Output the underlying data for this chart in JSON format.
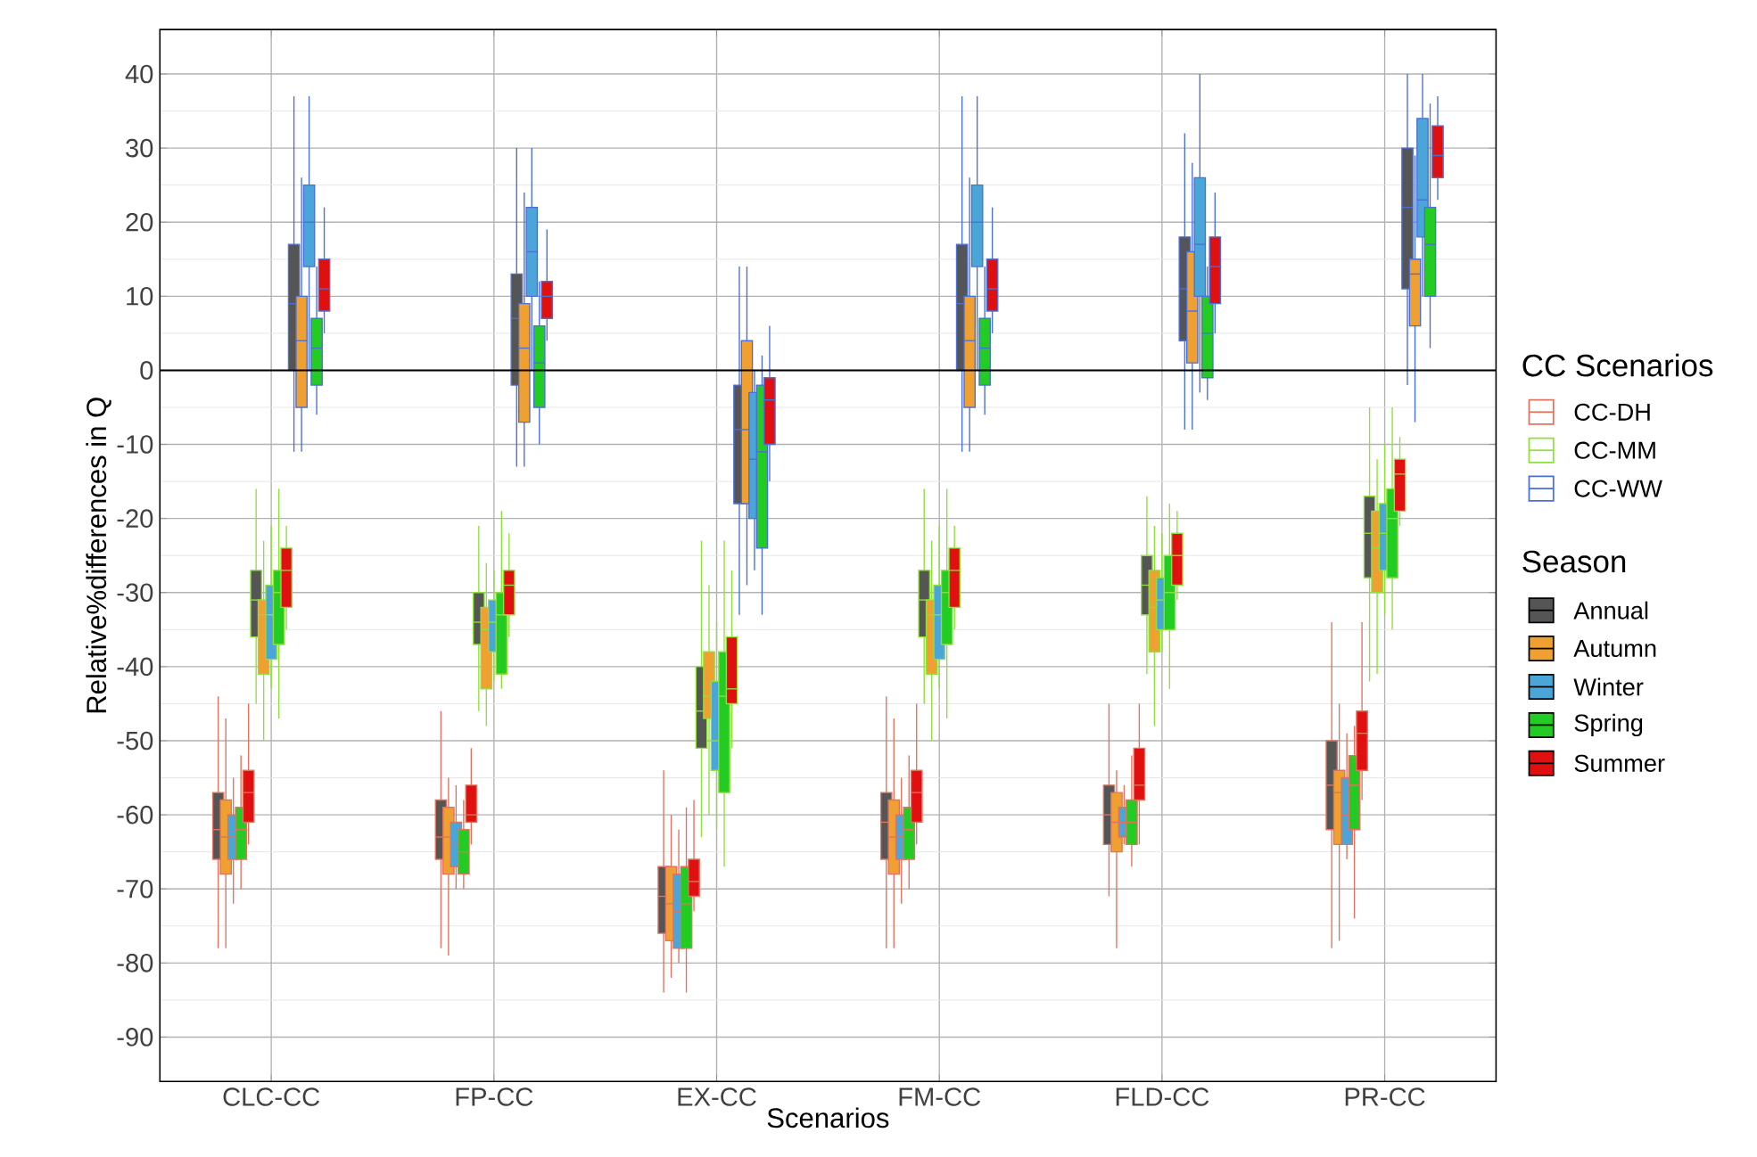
{
  "chart_data": {
    "type": "box",
    "xlabel": "Scenarios",
    "ylabel": "Relative%differences in Q",
    "categories": [
      "CLC-CC",
      "FP-CC",
      "EX-CC",
      "FM-CC",
      "FLD-CC",
      "PR-CC"
    ],
    "ylim": [
      -96,
      46
    ],
    "yticks": [
      -90,
      -80,
      -70,
      -60,
      -50,
      -40,
      -30,
      -20,
      -10,
      0,
      10,
      20,
      30,
      40
    ],
    "grid": true,
    "legend_title": "CC Scenarios",
    "annotations": [
      "CC-DH",
      "CC-MM",
      "CC-WW",
      "Season",
      "Annual",
      "Autumn",
      "Winter",
      "Spring",
      "Summer"
    ],
    "ref_lines": [
      {
        "axis": "y",
        "value": 0,
        "color": "#000000"
      }
    ],
    "series": [
      {
        "color": "#e0735e",
        "colors": [
          "#555555",
          "#555555",
          "#555555",
          "#555555",
          "#555555",
          "#555555"
        ],
        "boxes": [
          {
            "low": -78,
            "q1": -66,
            "median": -62,
            "q3": -57,
            "high": -44
          },
          {
            "low": -78,
            "q1": -66,
            "median": -63,
            "q3": -58,
            "high": -46
          },
          {
            "low": -84,
            "q1": -76,
            "median": -71,
            "q3": -67,
            "high": -54
          },
          {
            "low": -78,
            "q1": -66,
            "median": -61,
            "q3": -57,
            "high": -44
          },
          {
            "low": -71,
            "q1": -64,
            "median": -60,
            "q3": -56,
            "high": -45
          },
          {
            "low": -78,
            "q1": -62,
            "median": -56,
            "q3": -50,
            "high": -34
          }
        ]
      },
      {
        "color": "#e0735e",
        "colors": [
          "#f0a030",
          "#f0a030",
          "#f0a030",
          "#f0a030",
          "#f0a030",
          "#f0a030"
        ],
        "boxes": [
          {
            "low": -78,
            "q1": -68,
            "median": -63,
            "q3": -58,
            "high": -47
          },
          {
            "low": -79,
            "q1": -68,
            "median": -63,
            "q3": -59,
            "high": -55
          },
          {
            "low": -82,
            "q1": -77,
            "median": -72,
            "q3": -67,
            "high": -60
          },
          {
            "low": -78,
            "q1": -68,
            "median": -63,
            "q3": -58,
            "high": -47
          },
          {
            "low": -78,
            "q1": -65,
            "median": -61,
            "q3": -57,
            "high": -54
          },
          {
            "low": -77,
            "q1": -64,
            "median": -57,
            "q3": -54,
            "high": -45
          }
        ]
      },
      {
        "color": "#e0735e",
        "colors": [
          "#4aa6d9",
          "#4aa6d9",
          "#4aa6d9",
          "#4aa6d9",
          "#4aa6d9",
          "#4aa6d9"
        ],
        "boxes": [
          {
            "low": -72,
            "q1": -66,
            "median": -63,
            "q3": -60,
            "high": -55
          },
          {
            "low": -70,
            "q1": -67,
            "median": -64,
            "q3": -61,
            "high": -56
          },
          {
            "low": -80,
            "q1": -78,
            "median": -73,
            "q3": -68,
            "high": -62
          },
          {
            "low": -72,
            "q1": -66,
            "median": -63,
            "q3": -60,
            "high": -55
          },
          {
            "low": -64,
            "q1": -63,
            "median": -61,
            "q3": -59,
            "high": -56
          },
          {
            "low": -66,
            "q1": -64,
            "median": -60,
            "q3": -55,
            "high": -49
          }
        ]
      },
      {
        "color": "#e0735e",
        "colors": [
          "#22cc22",
          "#22cc22",
          "#22cc22",
          "#22cc22",
          "#22cc22",
          "#22cc22"
        ],
        "boxes": [
          {
            "low": -70,
            "q1": -66,
            "median": -62,
            "q3": -59,
            "high": -52
          },
          {
            "low": -70,
            "q1": -68,
            "median": -65,
            "q3": -62,
            "high": -58
          },
          {
            "low": -84,
            "q1": -78,
            "median": -72,
            "q3": -67,
            "high": -59
          },
          {
            "low": -70,
            "q1": -66,
            "median": -62,
            "q3": -59,
            "high": -52
          },
          {
            "low": -67,
            "q1": -64,
            "median": -61,
            "q3": -58,
            "high": -52
          },
          {
            "low": -74,
            "q1": -62,
            "median": -56,
            "q3": -52,
            "high": -48
          }
        ]
      },
      {
        "color": "#e0735e",
        "colors": [
          "#e01010",
          "#e01010",
          "#e01010",
          "#e01010",
          "#e01010",
          "#e01010"
        ],
        "boxes": [
          {
            "low": -64,
            "q1": -61,
            "median": -57,
            "q3": -54,
            "high": -45
          },
          {
            "low": -64,
            "q1": -61,
            "median": -60,
            "q3": -56,
            "high": -51
          },
          {
            "low": -73,
            "q1": -71,
            "median": -69,
            "q3": -66,
            "high": -58
          },
          {
            "low": -64,
            "q1": -61,
            "median": -57,
            "q3": -54,
            "high": -45
          },
          {
            "low": -64,
            "q1": -58,
            "median": -56,
            "q3": -51,
            "high": -45
          },
          {
            "low": -58,
            "q1": -54,
            "median": -49,
            "q3": -46,
            "high": -34
          }
        ]
      },
      {
        "color": "#8fe03a",
        "colors": [
          "#555555",
          "#555555",
          "#555555",
          "#555555",
          "#555555",
          "#555555"
        ],
        "boxes": [
          {
            "low": -45,
            "q1": -36,
            "median": -31,
            "q3": -27,
            "high": -16
          },
          {
            "low": -46,
            "q1": -37,
            "median": -34,
            "q3": -30,
            "high": -21
          },
          {
            "low": -63,
            "q1": -51,
            "median": -46,
            "q3": -40,
            "high": -23
          },
          {
            "low": -45,
            "q1": -36,
            "median": -31,
            "q3": -27,
            "high": -16
          },
          {
            "low": -41,
            "q1": -33,
            "median": -29,
            "q3": -25,
            "high": -17
          },
          {
            "low": -42,
            "q1": -28,
            "median": -22,
            "q3": -17,
            "high": -5
          }
        ]
      },
      {
        "color": "#8fe03a",
        "colors": [
          "#f0a030",
          "#f0a030",
          "#f0a030",
          "#f0a030",
          "#f0a030",
          "#f0a030"
        ],
        "boxes": [
          {
            "low": -50,
            "q1": -41,
            "median": -33,
            "q3": -31,
            "high": -23
          },
          {
            "low": -48,
            "q1": -43,
            "median": -35,
            "q3": -32,
            "high": -26
          },
          {
            "low": -60,
            "q1": -47,
            "median": -44,
            "q3": -38,
            "high": -29
          },
          {
            "low": -50,
            "q1": -41,
            "median": -33,
            "q3": -31,
            "high": -23
          },
          {
            "low": -48,
            "q1": -38,
            "median": -32,
            "q3": -27,
            "high": -21
          },
          {
            "low": -41,
            "q1": -30,
            "median": -24,
            "q3": -19,
            "high": -12
          }
        ]
      },
      {
        "color": "#8fe03a",
        "colors": [
          "#4aa6d9",
          "#4aa6d9",
          "#4aa6d9",
          "#4aa6d9",
          "#4aa6d9",
          "#4aa6d9"
        ],
        "boxes": [
          {
            "low": -43,
            "q1": -39,
            "median": -33,
            "q3": -29,
            "high": -21
          },
          {
            "low": -42,
            "q1": -38,
            "median": -34,
            "q3": -31,
            "high": -27
          },
          {
            "low": -62,
            "q1": -54,
            "median": -50,
            "q3": -42,
            "high": -34
          },
          {
            "low": -43,
            "q1": -39,
            "median": -33,
            "q3": -29,
            "high": -21
          },
          {
            "low": -38,
            "q1": -35,
            "median": -31,
            "q3": -28,
            "high": -22
          },
          {
            "low": -33,
            "q1": -27,
            "median": -22,
            "q3": -18,
            "high": -10
          }
        ]
      },
      {
        "color": "#8fe03a",
        "colors": [
          "#22cc22",
          "#22cc22",
          "#22cc22",
          "#22cc22",
          "#22cc22",
          "#22cc22"
        ],
        "boxes": [
          {
            "low": -47,
            "q1": -37,
            "median": -30,
            "q3": -27,
            "high": -16
          },
          {
            "low": -43,
            "q1": -41,
            "median": -33,
            "q3": -30,
            "high": -19
          },
          {
            "low": -67,
            "q1": -57,
            "median": -44,
            "q3": -38,
            "high": -23
          },
          {
            "low": -47,
            "q1": -37,
            "median": -30,
            "q3": -27,
            "high": -16
          },
          {
            "low": -43,
            "q1": -35,
            "median": -30,
            "q3": -25,
            "high": -18
          },
          {
            "low": -35,
            "q1": -28,
            "median": -20,
            "q3": -16,
            "high": -5
          }
        ]
      },
      {
        "color": "#8fe03a",
        "colors": [
          "#e01010",
          "#e01010",
          "#e01010",
          "#e01010",
          "#e01010",
          "#e01010"
        ],
        "boxes": [
          {
            "low": -35,
            "q1": -32,
            "median": -27,
            "q3": -24,
            "high": -21
          },
          {
            "low": -36,
            "q1": -33,
            "median": -29,
            "q3": -27,
            "high": -22
          },
          {
            "low": -51,
            "q1": -45,
            "median": -43,
            "q3": -36,
            "high": -27
          },
          {
            "low": -35,
            "q1": -32,
            "median": -27,
            "q3": -24,
            "high": -21
          },
          {
            "low": -31,
            "q1": -29,
            "median": -25,
            "q3": -22,
            "high": -19
          },
          {
            "low": -21,
            "q1": -19,
            "median": -14,
            "q3": -12,
            "high": -9
          }
        ]
      },
      {
        "color": "#4a6fd6",
        "colors": [
          "#555555",
          "#555555",
          "#555555",
          "#555555",
          "#555555",
          "#555555"
        ],
        "boxes": [
          {
            "low": -11,
            "q1": 0,
            "median": 9,
            "q3": 17,
            "high": 37
          },
          {
            "low": -13,
            "q1": -2,
            "median": 7,
            "q3": 13,
            "high": 30
          },
          {
            "low": -33,
            "q1": -18,
            "median": -8,
            "q3": -2,
            "high": 14
          },
          {
            "low": -11,
            "q1": 0,
            "median": 9,
            "q3": 17,
            "high": 37
          },
          {
            "low": -8,
            "q1": 4,
            "median": 11,
            "q3": 18,
            "high": 32
          },
          {
            "low": -2,
            "q1": 11,
            "median": 22,
            "q3": 30,
            "high": 40
          }
        ]
      },
      {
        "color": "#4a6fd6",
        "colors": [
          "#f0a030",
          "#f0a030",
          "#f0a030",
          "#f0a030",
          "#f0a030",
          "#f0a030"
        ],
        "boxes": [
          {
            "low": -11,
            "q1": -5,
            "median": 4,
            "q3": 10,
            "high": 26
          },
          {
            "low": -13,
            "q1": -7,
            "median": 3,
            "q3": 9,
            "high": 24
          },
          {
            "low": -29,
            "q1": -18,
            "median": -8,
            "q3": 4,
            "high": 14
          },
          {
            "low": -11,
            "q1": -5,
            "median": 4,
            "q3": 10,
            "high": 26
          },
          {
            "low": -8,
            "q1": 1,
            "median": 8,
            "q3": 16,
            "high": 28
          },
          {
            "low": -7,
            "q1": 6,
            "median": 13,
            "q3": 15,
            "high": 29
          }
        ]
      },
      {
        "color": "#4a6fd6",
        "colors": [
          "#4aa6d9",
          "#4aa6d9",
          "#4aa6d9",
          "#4aa6d9",
          "#4aa6d9",
          "#4aa6d9"
        ],
        "boxes": [
          {
            "low": 0,
            "q1": 14,
            "median": 20,
            "q3": 25,
            "high": 37
          },
          {
            "low": 0,
            "q1": 10,
            "median": 16,
            "q3": 22,
            "high": 30
          },
          {
            "low": -27,
            "q1": -20,
            "median": -12,
            "q3": -3,
            "high": 0
          },
          {
            "low": 0,
            "q1": 14,
            "median": 20,
            "q3": 25,
            "high": 37
          },
          {
            "low": -3,
            "q1": 10,
            "median": 17,
            "q3": 26,
            "high": 40
          },
          {
            "low": 10,
            "q1": 18,
            "median": 23,
            "q3": 34,
            "high": 40
          }
        ]
      },
      {
        "color": "#4a6fd6",
        "colors": [
          "#22cc22",
          "#22cc22",
          "#22cc22",
          "#22cc22",
          "#22cc22",
          "#22cc22"
        ],
        "boxes": [
          {
            "low": -6,
            "q1": -2,
            "median": 3,
            "q3": 7,
            "high": 14
          },
          {
            "low": -10,
            "q1": -5,
            "median": 1,
            "q3": 6,
            "high": 12
          },
          {
            "low": -33,
            "q1": -24,
            "median": -11,
            "q3": -2,
            "high": 2
          },
          {
            "low": -6,
            "q1": -2,
            "median": 3,
            "q3": 7,
            "high": 14
          },
          {
            "low": -4,
            "q1": -1,
            "median": 5,
            "q3": 10,
            "high": 14
          },
          {
            "low": 3,
            "q1": 10,
            "median": 17,
            "q3": 22,
            "high": 36
          }
        ]
      },
      {
        "color": "#4a6fd6",
        "colors": [
          "#e01010",
          "#e01010",
          "#e01010",
          "#e01010",
          "#e01010",
          "#e01010"
        ],
        "boxes": [
          {
            "low": 5,
            "q1": 8,
            "median": 11,
            "q3": 15,
            "high": 22
          },
          {
            "low": 4,
            "q1": 7,
            "median": 10,
            "q3": 12,
            "high": 19
          },
          {
            "low": -15,
            "q1": -10,
            "median": -4,
            "q3": -1,
            "high": 6
          },
          {
            "low": 5,
            "q1": 8,
            "median": 11,
            "q3": 15,
            "high": 22
          },
          {
            "low": 5,
            "q1": 9,
            "median": 14,
            "q3": 18,
            "high": 24
          },
          {
            "low": 23,
            "q1": 26,
            "median": 29,
            "q3": 33,
            "high": 37
          }
        ]
      }
    ]
  }
}
